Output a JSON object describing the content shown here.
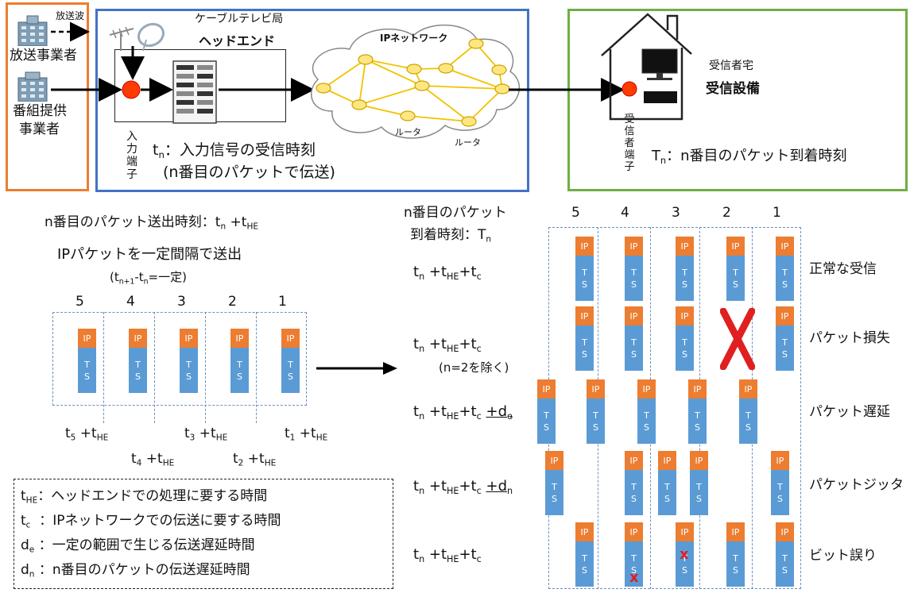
{
  "top": {
    "broadcast_wave": "放送波",
    "broadcaster": "放送事業者",
    "program_provider_l1": "番組提供",
    "program_provider_l2": "事業者",
    "cable_station": "ケーブルテレビ局",
    "headend": "ヘッドエンド",
    "ip_network": "IPネットワーク",
    "router": "ルータ",
    "input_terminal": [
      "入",
      "力",
      "端",
      "子"
    ],
    "tn_label": "：入力信号の受信時刻",
    "tn_sub_label": "(n番目のパケットで伝送)",
    "receiver_home": "受信者宅",
    "receiving_equipment": "受信設備",
    "receiver_terminal": [
      "受",
      "信",
      "者",
      "端",
      "子"
    ],
    "Tn_label": "：n番目のパケット到着時刻"
  },
  "send": {
    "time_label": "n番目のパケット送出時刻：",
    "desc": "IPパケットを一定間隔で送出",
    "interval_eq": "=一定)",
    "numbers": [
      "5",
      "4",
      "3",
      "2",
      "1"
    ],
    "time_labels": [
      {
        "t": "5",
        "h": "HE"
      },
      {
        "t": "4",
        "h": "HE"
      },
      {
        "t": "3",
        "h": "HE"
      },
      {
        "t": "2",
        "h": "HE"
      },
      {
        "t": "1",
        "h": "HE"
      }
    ]
  },
  "arrive": {
    "header_l1": "n番目のパケット",
    "header_l2": "到着時刻：",
    "numbers": [
      "5",
      "4",
      "3",
      "2",
      "1"
    ],
    "exclude": "(n=2を除く)",
    "rows": [
      {
        "label": "正常な受信"
      },
      {
        "label": "パケット損失"
      },
      {
        "label": "パケット遅延"
      },
      {
        "label": "パケットジッタ"
      },
      {
        "label": "ビット誤り"
      }
    ]
  },
  "packet": {
    "ip": "IP",
    "ts_t": "T",
    "ts_s": "S"
  },
  "legend": {
    "tHE": "：ヘッドエンドでの処理に要する時間",
    "tc": "：IPネットワークでの伝送に要する時間",
    "de": "：一定の範囲で生じる伝送遅延時間",
    "dn": "：n番目のパケットの伝送遅延時間"
  },
  "colors": {
    "orange": "#ed7d31",
    "blue_box": "#4472c4",
    "green_box": "#70ad47",
    "packet_ip": "#ed7d31",
    "packet_ts": "#5b9bd5",
    "error": "#e02020"
  }
}
